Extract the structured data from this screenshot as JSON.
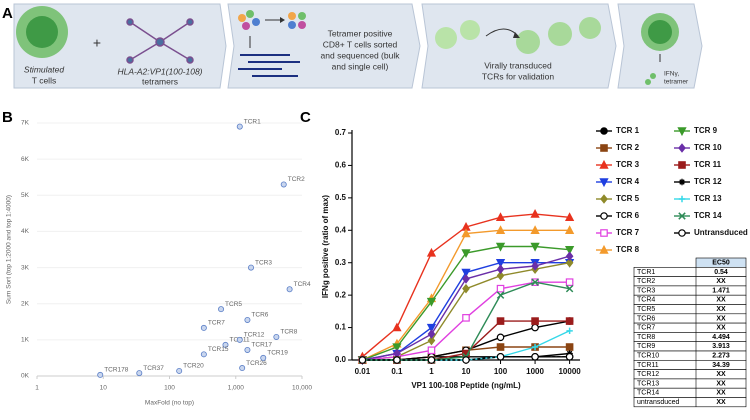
{
  "panel_labels": [
    "A",
    "B",
    "C"
  ],
  "workflow": {
    "stimulated": [
      "Stimulated",
      "T cells"
    ],
    "plus": "+",
    "tetramers": [
      "HLA-A2:VP1(100-108)",
      "tetramers"
    ],
    "sorting": [
      "Tetramer positive",
      "CD8+ T cells sorted",
      "and sequenced (bulk",
      "and single cell)"
    ],
    "transduction": [
      "Virally transduced",
      "TCRs for validation"
    ],
    "readout": [
      "IFNγ,",
      "tetramer"
    ]
  },
  "chart_data": [
    {
      "type": "scatter",
      "x_label": "MaxFold (no top)",
      "y_label": "Sum Sort (top 1:2000 and top 1:4000)",
      "xlog": true,
      "labels": [
        "TCR1",
        "TCR2",
        "TCR3",
        "TCR4",
        "TCR5",
        "TCR6",
        "TCR7",
        "TCR8",
        "TCR11",
        "TCR12",
        "TCR15",
        "TCR17",
        "TCR19",
        "TCR26",
        "TCR20",
        "TCR37",
        "TCR178"
      ],
      "x": [
        1150,
        5300,
        1700,
        6500,
        600,
        1500,
        330,
        4100,
        700,
        1150,
        330,
        1500,
        2600,
        1250,
        140,
        35,
        9
      ],
      "values": [
        6900,
        5300,
        3000,
        2400,
        1850,
        1550,
        1330,
        1080,
        860,
        1000,
        600,
        720,
        500,
        220,
        140,
        80,
        30
      ],
      "color": "#5b7fc7",
      "xlim": [
        1,
        10000
      ],
      "xticks": [
        1,
        10,
        100,
        {
          "value": 1000,
          "label": "1,000"
        },
        {
          "value": 10000,
          "label": "10,000"
        }
      ],
      "ylim": [
        0,
        7000
      ],
      "yticks": [
        {
          "value": 0,
          "label": "0K"
        },
        {
          "value": 1000,
          "label": "1K"
        },
        {
          "value": 2000,
          "label": "2K"
        },
        {
          "value": 3000,
          "label": "3K"
        },
        {
          "value": 4000,
          "label": "4K"
        },
        {
          "value": 5000,
          "label": "5K"
        },
        {
          "value": 6000,
          "label": "6K"
        },
        {
          "value": 7000,
          "label": "7K"
        }
      ],
      "grid": true
    },
    {
      "type": "line",
      "x_label": "VP1 100-108 Peptide (ng/mL)",
      "y_label": "IFNg positive (ratio of max)",
      "xlog": true,
      "x": [
        0.01,
        0.1,
        1,
        10,
        100,
        1000,
        10000
      ],
      "xlim": [
        0.005,
        20000
      ],
      "xticks": [
        0.01,
        0.1,
        1,
        10,
        100,
        1000,
        10000
      ],
      "ylim": [
        0,
        0.7
      ],
      "yticks": [
        {
          "value": 0,
          "label": "0.0"
        },
        0.1,
        0.2,
        0.3,
        0.4,
        0.5,
        0.6,
        0.7
      ],
      "series": [
        {
          "name": "TCR 1",
          "color": "#000000",
          "marker": "circle",
          "values": [
            0,
            0,
            0.01,
            0.01,
            0.01,
            0.01,
            0.01
          ]
        },
        {
          "name": "TCR 2",
          "color": "#8b4513",
          "marker": "square",
          "values": [
            0,
            0,
            0.01,
            0.03,
            0.04,
            0.04,
            0.04
          ]
        },
        {
          "name": "TCR 3",
          "color": "#e8321e",
          "marker": "triangle-up",
          "values": [
            0.01,
            0.1,
            0.33,
            0.41,
            0.44,
            0.45,
            0.44
          ]
        },
        {
          "name": "TCR 4",
          "color": "#1f3fe0",
          "marker": "triangle-down",
          "values": [
            0,
            0.02,
            0.1,
            0.27,
            0.3,
            0.3,
            0.3
          ]
        },
        {
          "name": "TCR 5",
          "color": "#8f8a2a",
          "marker": "diamond",
          "values": [
            0,
            0.01,
            0.06,
            0.22,
            0.26,
            0.28,
            0.3
          ]
        },
        {
          "name": "TCR 6",
          "color": "#000000",
          "marker": "open-circle",
          "values": [
            0,
            0,
            0.01,
            0.03,
            0.07,
            0.1,
            0.12
          ]
        },
        {
          "name": "TCR 7",
          "color": "#e040e0",
          "marker": "open-square",
          "values": [
            0,
            0.01,
            0.03,
            0.13,
            0.22,
            0.24,
            0.24
          ]
        },
        {
          "name": "TCR 8",
          "color": "#f39a2c",
          "marker": "triangle-up",
          "values": [
            0,
            0.05,
            0.19,
            0.39,
            0.4,
            0.4,
            0.4
          ]
        },
        {
          "name": "TCR 9",
          "color": "#3b9a2a",
          "marker": "triangle-down",
          "values": [
            0,
            0.04,
            0.18,
            0.33,
            0.35,
            0.35,
            0.34
          ]
        },
        {
          "name": "TCR 10",
          "color": "#6a2fa8",
          "marker": "diamond",
          "values": [
            0,
            0.02,
            0.08,
            0.25,
            0.28,
            0.29,
            0.32
          ]
        },
        {
          "name": "TCR 11",
          "color": "#9b1c1c",
          "marker": "square",
          "values": [
            0,
            0,
            0,
            0.02,
            0.12,
            0.12,
            0.12
          ]
        },
        {
          "name": "TCR 12",
          "color": "#000000",
          "marker": "star",
          "values": [
            0,
            0,
            0,
            0,
            0.01,
            0.01,
            0.02
          ]
        },
        {
          "name": "TCR 13",
          "color": "#35d8e8",
          "marker": "plus",
          "values": [
            0,
            0,
            0,
            0,
            0.01,
            0.04,
            0.09
          ]
        },
        {
          "name": "TCR 14",
          "color": "#2e8b57",
          "marker": "cross",
          "values": [
            0,
            0,
            0,
            0.01,
            0.2,
            0.24,
            0.22
          ]
        },
        {
          "name": "Untransduced",
          "color": "#000000",
          "marker": "open-circle",
          "values": [
            0,
            0,
            0,
            0,
            0.01,
            0.01,
            0.01
          ]
        }
      ]
    }
  ],
  "ec50_table": {
    "header": "EC50",
    "rows": [
      [
        "TCR1",
        "0.54"
      ],
      [
        "TCR2",
        "XX"
      ],
      [
        "TCR3",
        "1.471"
      ],
      [
        "TCR4",
        "XX"
      ],
      [
        "TCR5",
        "XX"
      ],
      [
        "TCR6",
        "XX"
      ],
      [
        "TCR7",
        "XX"
      ],
      [
        "TCR8",
        "4.494"
      ],
      [
        "TCR9",
        "3.913"
      ],
      [
        "TCR10",
        "2.273"
      ],
      [
        "TCR11",
        "34.39"
      ],
      [
        "TCR12",
        "XX"
      ],
      [
        "TCR13",
        "XX"
      ],
      [
        "TCR14",
        "XX"
      ],
      [
        "untransduced",
        "XX"
      ]
    ]
  }
}
